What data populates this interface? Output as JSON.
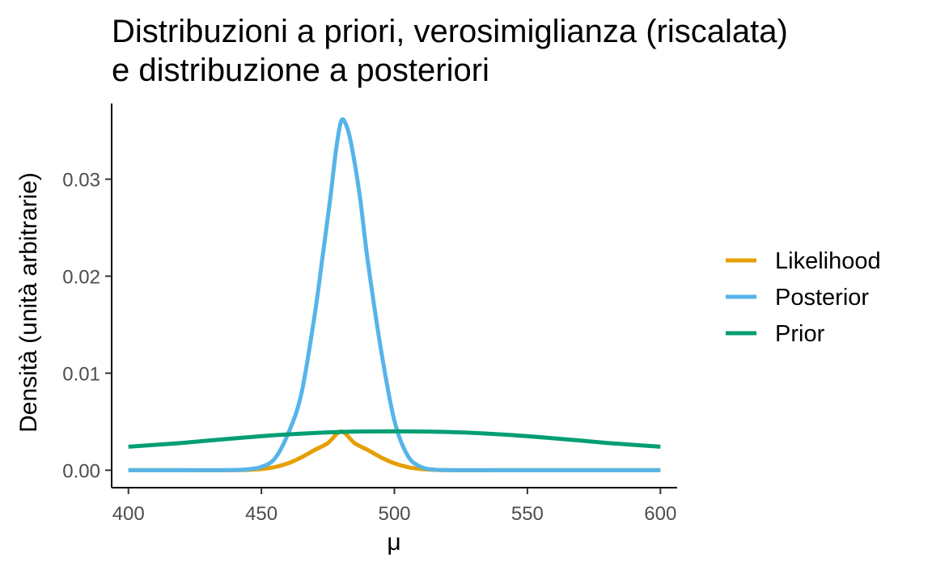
{
  "chart_data": {
    "type": "line",
    "title_lines": [
      "Distribuzioni a priori, verosimiglianza (riscalata)",
      "e distribuzione a posteriori"
    ],
    "xlabel": "μ",
    "ylabel": "Densità (unità arbitrarie)",
    "xlim": [
      393.7,
      606.3
    ],
    "ylim": [
      -0.0018,
      0.0378
    ],
    "x_ticks": [
      400,
      450,
      500,
      550,
      600
    ],
    "x_tick_labels": [
      "400",
      "450",
      "500",
      "550",
      "600"
    ],
    "y_ticks": [
      0,
      0.01,
      0.02,
      0.03
    ],
    "y_tick_labels": [
      "0.00",
      "0.01",
      "0.02",
      "0.03"
    ],
    "grid": false,
    "legend_position": "right",
    "series": [
      {
        "name": "Likelihood",
        "color": "#E69F00",
        "x": [
          400,
          420,
          440,
          450,
          455,
          460,
          465,
          470,
          475,
          480,
          485,
          490,
          495,
          500,
          505,
          510,
          520,
          540,
          560,
          580,
          600
        ],
        "y": [
          0.0,
          0.0,
          0.0,
          0.00012,
          0.00032,
          0.00071,
          0.00132,
          0.00208,
          0.0028,
          0.004,
          0.0028,
          0.00208,
          0.00132,
          0.00071,
          0.00032,
          0.00012,
          0.0,
          0.0,
          0.0,
          0.0,
          0.0
        ]
      },
      {
        "name": "Posterior",
        "color": "#56B4E9",
        "x": [
          400,
          430,
          440,
          445,
          450,
          455,
          460,
          465,
          470,
          473,
          476,
          478,
          480,
          482,
          484,
          487,
          490,
          495,
          500,
          505,
          510,
          515,
          520,
          530,
          600
        ],
        "y": [
          0.0,
          0.0,
          2e-05,
          0.0001,
          0.00034,
          0.00119,
          0.00375,
          0.00785,
          0.01595,
          0.02202,
          0.02826,
          0.0329,
          0.036,
          0.03549,
          0.0333,
          0.02826,
          0.02155,
          0.01235,
          0.0051,
          0.0015,
          0.00033,
          6e-05,
          1e-05,
          0.0,
          0.0
        ]
      },
      {
        "name": "Prior",
        "color": "#009E73",
        "x": [
          400,
          420,
          440,
          460,
          480,
          500,
          520,
          540,
          560,
          580,
          600
        ],
        "y": [
          0.00242,
          0.00281,
          0.00329,
          0.00369,
          0.00394,
          0.004,
          0.00394,
          0.00369,
          0.00329,
          0.00281,
          0.00242
        ]
      }
    ]
  }
}
